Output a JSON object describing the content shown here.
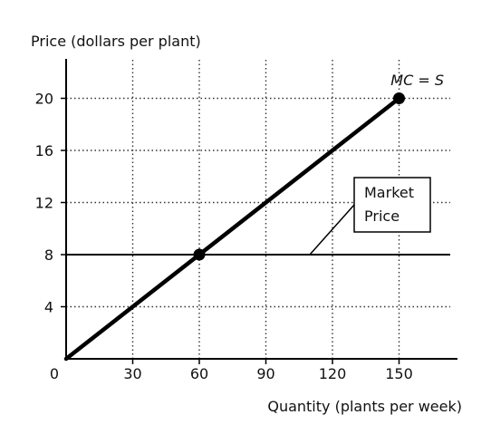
{
  "chart_data": {
    "type": "line",
    "ylabel": "Price (dollars per plant)",
    "xlabel": "Quantity (plants per week)",
    "origin_label": "0",
    "x_ticks": [
      30,
      60,
      90,
      120,
      150
    ],
    "y_ticks": [
      4,
      8,
      12,
      16,
      20
    ],
    "xlim": [
      0,
      175
    ],
    "ylim": [
      0,
      23
    ],
    "grid": "dotted",
    "series": [
      {
        "name": "MC = S",
        "points": [
          [
            0,
            0
          ],
          [
            150,
            20
          ]
        ]
      }
    ],
    "market_price": {
      "value": 8,
      "label_line1": "Market",
      "label_line2": "Price"
    },
    "marked_points": [
      [
        60,
        8
      ],
      [
        150,
        20
      ]
    ]
  }
}
